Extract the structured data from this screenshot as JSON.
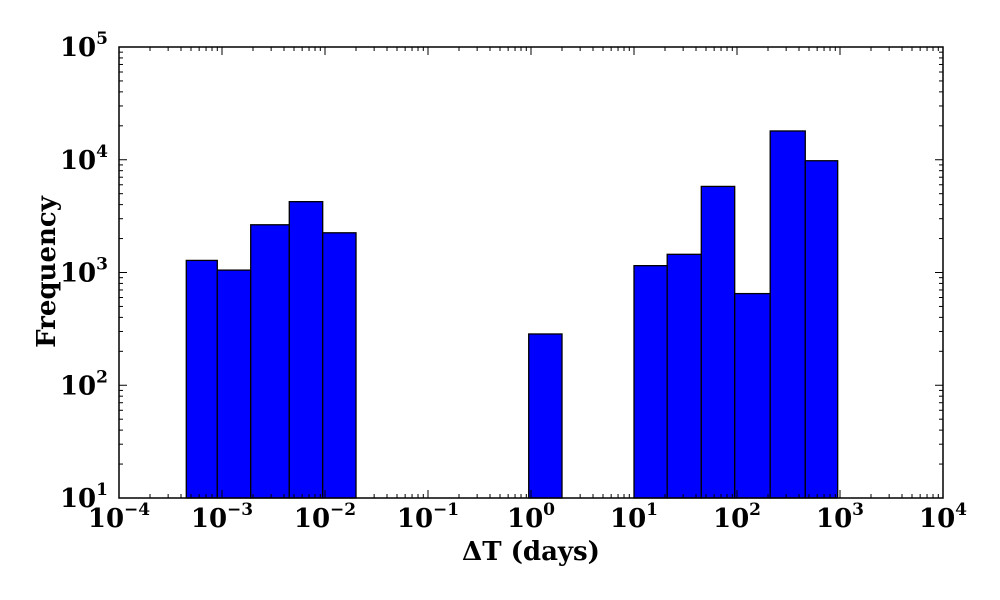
{
  "chart_data": {
    "type": "bar",
    "title": "",
    "xlabel": "ΔT (days)",
    "ylabel": "Frequency",
    "x_scale": "log",
    "y_scale": "log",
    "xlim": [
      0.0001,
      10000
    ],
    "ylim": [
      10,
      100000
    ],
    "grid": false,
    "bar_color": "#0000ff",
    "edge_color": "#000000",
    "x_ticks": [
      {
        "base": "10",
        "exp": "−4",
        "value": 0.0001
      },
      {
        "base": "10",
        "exp": "−3",
        "value": 0.001
      },
      {
        "base": "10",
        "exp": "−2",
        "value": 0.01
      },
      {
        "base": "10",
        "exp": "−1",
        "value": 0.1
      },
      {
        "base": "10",
        "exp": "0",
        "value": 1
      },
      {
        "base": "10",
        "exp": "1",
        "value": 10
      },
      {
        "base": "10",
        "exp": "2",
        "value": 100
      },
      {
        "base": "10",
        "exp": "3",
        "value": 1000
      },
      {
        "base": "10",
        "exp": "4",
        "value": 10000
      }
    ],
    "y_ticks": [
      {
        "base": "10",
        "exp": "1",
        "value": 10
      },
      {
        "base": "10",
        "exp": "2",
        "value": 100
      },
      {
        "base": "10",
        "exp": "3",
        "value": 1000
      },
      {
        "base": "10",
        "exp": "4",
        "value": 10000
      },
      {
        "base": "10",
        "exp": "5",
        "value": 100000
      }
    ],
    "bars": [
      {
        "x_start": 0.00045,
        "x_end": 0.0009,
        "value": 1280
      },
      {
        "x_start": 0.0009,
        "x_end": 0.0019,
        "value": 1050
      },
      {
        "x_start": 0.0019,
        "x_end": 0.0045,
        "value": 2650
      },
      {
        "x_start": 0.0045,
        "x_end": 0.0095,
        "value": 4250
      },
      {
        "x_start": 0.0095,
        "x_end": 0.02,
        "value": 2250
      },
      {
        "x_start": 0.95,
        "x_end": 2.0,
        "value": 285
      },
      {
        "x_start": 10,
        "x_end": 21,
        "value": 1150
      },
      {
        "x_start": 21,
        "x_end": 45,
        "value": 1450
      },
      {
        "x_start": 45,
        "x_end": 95,
        "value": 5800
      },
      {
        "x_start": 95,
        "x_end": 210,
        "value": 650
      },
      {
        "x_start": 210,
        "x_end": 460,
        "value": 18000
      },
      {
        "x_start": 460,
        "x_end": 950,
        "value": 9800
      }
    ]
  }
}
